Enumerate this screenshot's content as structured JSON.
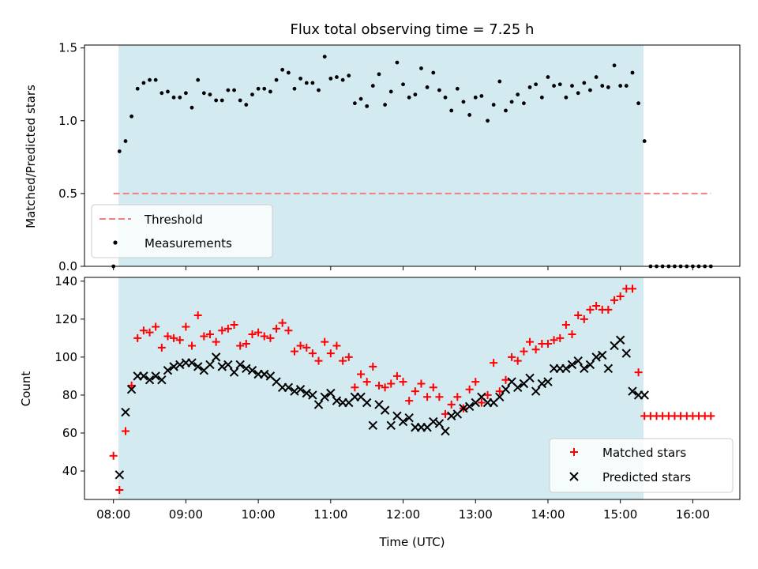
{
  "title": "Flux total observing time = 7.25 h",
  "colors": {
    "shade": "#d3eaf1",
    "threshold": "#f08080",
    "measurement": "#000000",
    "matched": "#ff0000",
    "predicted": "#000000"
  },
  "chart_data": [
    {
      "type": "scatter",
      "ylabel": "Matched/Predicted stars",
      "ylim": [
        0,
        1.52
      ],
      "yticks": [
        0,
        0.5,
        1.0,
        1.5
      ],
      "ytick_labels": [
        "0.0",
        "0.5",
        "1.0",
        "1.5"
      ],
      "xlim": [
        7.6,
        16.65
      ],
      "shaded_span": [
        8.07,
        15.32
      ],
      "threshold": {
        "label": "Threshold",
        "value": 0.5,
        "x_range": [
          8.0,
          16.25
        ]
      },
      "legend": {
        "position": "lower-left",
        "entries": [
          "Threshold",
          "Measurements"
        ]
      },
      "series": [
        {
          "name": "Measurements",
          "x": [
            8.0,
            8.083,
            8.167,
            8.25,
            8.333,
            8.417,
            8.5,
            8.583,
            8.667,
            8.75,
            8.833,
            8.917,
            9.0,
            9.083,
            9.167,
            9.25,
            9.333,
            9.417,
            9.5,
            9.583,
            9.667,
            9.75,
            9.833,
            9.917,
            10.0,
            10.083,
            10.167,
            10.25,
            10.333,
            10.417,
            10.5,
            10.583,
            10.667,
            10.75,
            10.833,
            10.917,
            11.0,
            11.083,
            11.167,
            11.25,
            11.333,
            11.417,
            11.5,
            11.583,
            11.667,
            11.75,
            11.833,
            11.917,
            12.0,
            12.083,
            12.167,
            12.25,
            12.333,
            12.417,
            12.5,
            12.583,
            12.667,
            12.75,
            12.833,
            12.917,
            13.0,
            13.083,
            13.167,
            13.25,
            13.333,
            13.417,
            13.5,
            13.583,
            13.667,
            13.75,
            13.833,
            13.917,
            14.0,
            14.083,
            14.167,
            14.25,
            14.333,
            14.417,
            14.5,
            14.583,
            14.667,
            14.75,
            14.833,
            14.917,
            15.0,
            15.083,
            15.167,
            15.25,
            15.333,
            15.417,
            15.5,
            15.583,
            15.667,
            15.75,
            15.833,
            15.917,
            16.0,
            16.083,
            16.167,
            16.25
          ],
          "y": [
            0.0,
            0.79,
            0.86,
            1.03,
            1.22,
            1.26,
            1.28,
            1.28,
            1.19,
            1.2,
            1.16,
            1.16,
            1.19,
            1.09,
            1.28,
            1.19,
            1.18,
            1.14,
            1.14,
            1.21,
            1.21,
            1.14,
            1.11,
            1.18,
            1.22,
            1.22,
            1.2,
            1.28,
            1.35,
            1.33,
            1.22,
            1.29,
            1.26,
            1.26,
            1.21,
            1.44,
            1.29,
            1.3,
            1.28,
            1.31,
            1.12,
            1.15,
            1.1,
            1.24,
            1.32,
            1.11,
            1.2,
            1.4,
            1.25,
            1.16,
            1.18,
            1.36,
            1.23,
            1.33,
            1.21,
            1.16,
            1.07,
            1.22,
            1.13,
            1.04,
            1.16,
            1.17,
            1.0,
            1.11,
            1.27,
            1.07,
            1.13,
            1.18,
            1.12,
            1.23,
            1.25,
            1.16,
            1.3,
            1.24,
            1.25,
            1.16,
            1.24,
            1.19,
            1.26,
            1.21,
            1.3,
            1.24,
            1.23,
            1.38,
            1.24,
            1.24,
            1.33,
            1.12,
            0.86,
            0.0,
            0.0,
            0.0,
            0.0,
            0.0,
            0.0,
            0.0,
            0.0,
            0.0,
            0.0,
            0.0
          ]
        }
      ]
    },
    {
      "type": "scatter",
      "ylabel": "Count",
      "xlabel": "Time (UTC)",
      "ylim": [
        25,
        142
      ],
      "yticks": [
        40,
        60,
        80,
        100,
        120,
        140
      ],
      "ytick_labels": [
        "40",
        "60",
        "80",
        "100",
        "120",
        "140"
      ],
      "xlim": [
        7.6,
        16.65
      ],
      "xticks": [
        8,
        9,
        10,
        11,
        12,
        13,
        14,
        15,
        16
      ],
      "xtick_labels": [
        "08:00",
        "09:00",
        "10:00",
        "11:00",
        "12:00",
        "13:00",
        "14:00",
        "15:00",
        "16:00"
      ],
      "shaded_span": [
        8.07,
        15.32
      ],
      "legend": {
        "position": "lower-right",
        "entries": [
          "Matched stars",
          "Predicted stars"
        ]
      },
      "series": [
        {
          "name": "Matched stars",
          "marker": "plus",
          "x": [
            8.0,
            8.083,
            8.167,
            8.25,
            8.333,
            8.417,
            8.5,
            8.583,
            8.667,
            8.75,
            8.833,
            8.917,
            9.0,
            9.083,
            9.167,
            9.25,
            9.333,
            9.417,
            9.5,
            9.583,
            9.667,
            9.75,
            9.833,
            9.917,
            10.0,
            10.083,
            10.167,
            10.25,
            10.333,
            10.417,
            10.5,
            10.583,
            10.667,
            10.75,
            10.833,
            10.917,
            11.0,
            11.083,
            11.167,
            11.25,
            11.333,
            11.417,
            11.5,
            11.583,
            11.667,
            11.75,
            11.833,
            11.917,
            12.0,
            12.083,
            12.167,
            12.25,
            12.333,
            12.417,
            12.5,
            12.583,
            12.667,
            12.75,
            12.833,
            12.917,
            13.0,
            13.083,
            13.167,
            13.25,
            13.333,
            13.417,
            13.5,
            13.583,
            13.667,
            13.75,
            13.833,
            13.917,
            14.0,
            14.083,
            14.167,
            14.25,
            14.333,
            14.417,
            14.5,
            14.583,
            14.667,
            14.75,
            14.833,
            14.917,
            15.0,
            15.083,
            15.167,
            15.25,
            15.333,
            15.417,
            15.5,
            15.583,
            15.667,
            15.75,
            15.833,
            15.917,
            16.0,
            16.083,
            16.167,
            16.25
          ],
          "y": [
            48,
            30,
            61,
            85,
            110,
            114,
            113,
            116,
            105,
            111,
            110,
            109,
            116,
            106,
            122,
            111,
            112,
            108,
            114,
            115,
            117,
            106,
            107,
            112,
            113,
            111,
            110,
            115,
            118,
            114,
            103,
            106,
            105,
            102,
            98,
            108,
            102,
            106,
            98,
            100,
            84,
            91,
            87,
            95,
            85,
            84,
            86,
            90,
            87,
            77,
            82,
            86,
            79,
            84,
            79,
            70,
            75,
            79,
            73,
            83,
            87,
            76,
            80,
            97,
            82,
            88,
            100,
            98,
            103,
            108,
            104,
            107,
            107,
            109,
            110,
            117,
            112,
            122,
            120,
            125,
            127,
            125,
            125,
            130,
            132,
            136,
            136,
            92,
            69,
            69,
            69,
            69,
            69,
            69,
            69,
            69,
            69,
            69,
            69,
            69
          ],
          "unit_note": ""
        },
        {
          "name": "Predicted stars",
          "marker": "x",
          "x": [
            8.083,
            8.167,
            8.25,
            8.333,
            8.417,
            8.5,
            8.583,
            8.667,
            8.75,
            8.833,
            8.917,
            9.0,
            9.083,
            9.167,
            9.25,
            9.333,
            9.417,
            9.5,
            9.583,
            9.667,
            9.75,
            9.833,
            9.917,
            10.0,
            10.083,
            10.167,
            10.25,
            10.333,
            10.417,
            10.5,
            10.583,
            10.667,
            10.75,
            10.833,
            10.917,
            11.0,
            11.083,
            11.167,
            11.25,
            11.333,
            11.417,
            11.5,
            11.583,
            11.667,
            11.75,
            11.833,
            11.917,
            12.0,
            12.083,
            12.167,
            12.25,
            12.333,
            12.417,
            12.5,
            12.583,
            12.667,
            12.75,
            12.833,
            12.917,
            13.0,
            13.083,
            13.167,
            13.25,
            13.333,
            13.417,
            13.5,
            13.583,
            13.667,
            13.75,
            13.833,
            13.917,
            14.0,
            14.083,
            14.167,
            14.25,
            14.333,
            14.417,
            14.5,
            14.583,
            14.667,
            14.75,
            14.833,
            14.917,
            15.0,
            15.083,
            15.167,
            15.25,
            15.333
          ],
          "y": [
            38,
            71,
            83,
            90,
            90,
            88,
            90,
            88,
            93,
            95,
            96,
            97,
            97,
            95,
            93,
            96,
            100,
            95,
            96,
            92,
            96,
            94,
            93,
            91,
            91,
            90,
            87,
            84,
            84,
            82,
            83,
            81,
            80,
            75,
            79,
            81,
            77,
            76,
            76,
            79,
            79,
            76,
            64,
            75,
            72,
            64,
            69,
            66,
            68,
            63,
            63,
            63,
            66,
            65,
            61,
            69,
            70,
            73,
            74,
            76,
            79,
            76,
            76,
            79,
            83,
            87,
            84,
            86,
            89,
            82,
            86,
            87,
            94,
            94,
            94,
            96,
            98,
            94,
            96,
            100,
            101,
            94,
            106,
            109,
            102,
            82,
            80,
            80
          ]
        }
      ]
    }
  ]
}
